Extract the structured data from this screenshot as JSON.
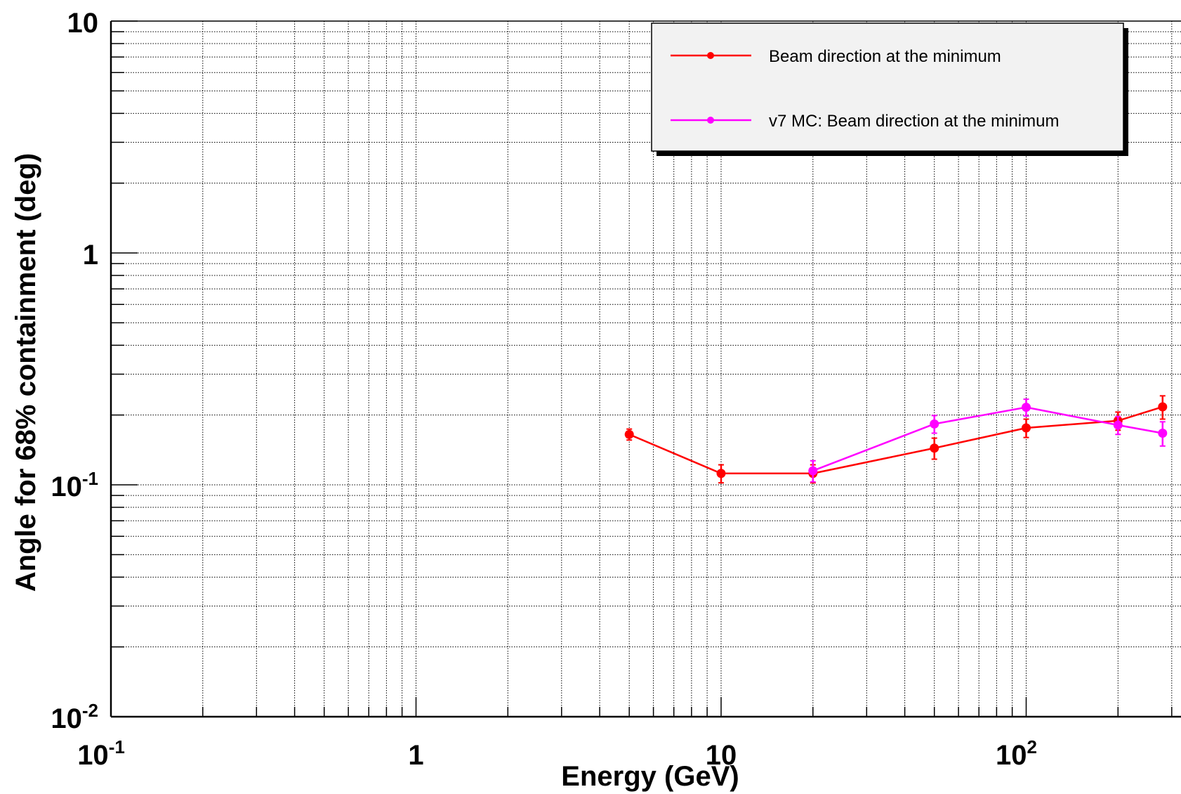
{
  "chart_data": {
    "type": "line",
    "xscale": "log",
    "yscale": "log",
    "xlim": [
      0.1,
      300
    ],
    "ylim": [
      0.01,
      10
    ],
    "grid": true,
    "xlabel": "Energy (GeV)",
    "ylabel": "Angle for 68% containment (deg)",
    "legend_position": "top-right",
    "x_ticks": [
      {
        "value": 0.1,
        "base": "10",
        "exp": "-1"
      },
      {
        "value": 1,
        "base": "1",
        "exp": ""
      },
      {
        "value": 10,
        "base": "10",
        "exp": ""
      },
      {
        "value": 100,
        "base": "10",
        "exp": "2"
      }
    ],
    "y_ticks": [
      {
        "value": 0.01,
        "base": "10",
        "exp": "-2"
      },
      {
        "value": 0.1,
        "base": "10",
        "exp": "-1"
      },
      {
        "value": 1,
        "base": "1",
        "exp": ""
      },
      {
        "value": 10,
        "base": "10",
        "exp": ""
      }
    ],
    "series": [
      {
        "name": "Beam direction at the minimum",
        "color": "#ff0000",
        "x": [
          5,
          10,
          20,
          50,
          100,
          200,
          280
        ],
        "y": [
          0.165,
          0.112,
          0.112,
          0.144,
          0.176,
          0.189,
          0.217
        ],
        "err": [
          0.009,
          0.01,
          0.01,
          0.015,
          0.016,
          0.017,
          0.025
        ]
      },
      {
        "name": "v7 MC: Beam direction at the minimum",
        "color": "#ff00ff",
        "x": [
          20,
          50,
          100,
          200,
          280
        ],
        "y": [
          0.115,
          0.183,
          0.216,
          0.181,
          0.167
        ],
        "err": [
          0.012,
          0.016,
          0.018,
          0.016,
          0.02
        ]
      }
    ]
  }
}
